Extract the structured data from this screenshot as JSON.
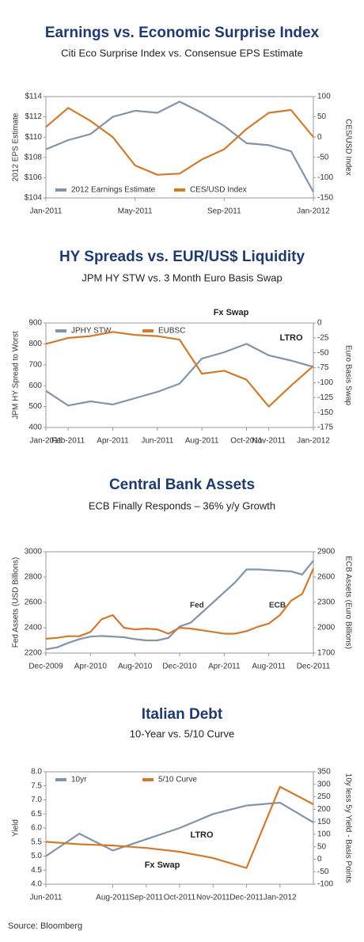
{
  "chart_data": [
    {
      "type": "line",
      "title": "Earnings vs. Economic Surprise Index",
      "subtitle": "Citi Eco Surprise Index vs. Consensue EPS Estimate",
      "x": [
        "2011-01",
        "2011-02",
        "2011-03",
        "2011-04",
        "2011-05",
        "2011-06",
        "2011-07",
        "2011-08",
        "2011-09",
        "2011-10",
        "2011-11",
        "2011-12",
        "2012-01"
      ],
      "xlim": [
        "2011-01",
        "2012-01"
      ],
      "xticks": [
        {
          "value": "2011-01",
          "label": "Jan-2011"
        },
        {
          "value": "2011-05",
          "label": "May-2011"
        },
        {
          "value": "2011-09",
          "label": "Sep-2011"
        },
        {
          "value": "2012-01",
          "label": "Jan-2012"
        }
      ],
      "y_label": "2012 EPS Estimate",
      "y2_label": "CES/USD Index",
      "ylim": [
        104,
        114
      ],
      "yticks": [
        {
          "value": 104,
          "label": "$104"
        },
        {
          "value": 106,
          "label": "$106"
        },
        {
          "value": 108,
          "label": "$108"
        },
        {
          "value": 110,
          "label": "$110"
        },
        {
          "value": 112,
          "label": "$112"
        },
        {
          "value": 114,
          "label": "$114"
        }
      ],
      "y2lim": [
        -150,
        100
      ],
      "y2ticks": [
        -150,
        -100,
        -50,
        0,
        50,
        100
      ],
      "legend": "lower left",
      "series": [
        {
          "name": "2012 Earnings Estimate",
          "color": "#8393a8",
          "values": [
            108.8,
            109.7,
            110.3,
            112.0,
            112.6,
            112.4,
            113.5,
            112.4,
            111.1,
            109.4,
            109.2,
            108.6,
            104.6
          ]
        },
        {
          "name": "CES/USD Index",
          "color": "#d07a2e",
          "axis": "y2",
          "values": [
            25,
            72,
            40,
            0,
            -70,
            -93,
            -90,
            -55,
            -30,
            20,
            60,
            67,
            0
          ]
        }
      ]
    },
    {
      "type": "line",
      "title": "HY Spreads vs. EUR/US$ Liquidity",
      "subtitle": "JPM HY STW vs. 3 Month Euro Basis Swap",
      "x": [
        "2011-01",
        "2011-02",
        "2011-03",
        "2011-04",
        "2011-05",
        "2011-06",
        "2011-07",
        "2011-08",
        "2011-09",
        "2011-10",
        "2011-11",
        "2011-12",
        "2012-01"
      ],
      "xlim": [
        "2011-01",
        "2012-01"
      ],
      "xticks": [
        {
          "value": "2011-01",
          "label": "Jan-2011"
        },
        {
          "value": "2011-02",
          "label": "Feb-2011"
        },
        {
          "value": "2011-04",
          "label": "Apr-2011"
        },
        {
          "value": "2011-06",
          "label": "Jun-2011"
        },
        {
          "value": "2011-08",
          "label": "Aug-2011"
        },
        {
          "value": "2011-10",
          "label": "Oct-2011"
        },
        {
          "value": "2011-11",
          "label": "Nov-2011"
        },
        {
          "value": "2012-01",
          "label": "Jan-2012"
        }
      ],
      "y_label": "JPM HY Spread to Worst",
      "y2_label": "Euro Basis Swap",
      "ylim": [
        400,
        900
      ],
      "yticks": [
        400,
        500,
        600,
        700,
        800,
        900
      ],
      "y2lim": [
        -175,
        0
      ],
      "y2ticks": [
        -175,
        -150,
        -125,
        -100,
        -75,
        -50,
        -25,
        0
      ],
      "legend": "upper left",
      "annotations": [
        "Fx Swap",
        "LTRO"
      ],
      "series": [
        {
          "name": "JPHY STW",
          "color": "#8393a8",
          "values": [
            575,
            505,
            525,
            510,
            540,
            570,
            610,
            730,
            760,
            800,
            745,
            720,
            690
          ]
        },
        {
          "name": "EUBSC",
          "color": "#d07a2e",
          "axis": "y2",
          "values": [
            -35,
            -25,
            -22,
            -15,
            -20,
            -22,
            -28,
            -85,
            -80,
            -95,
            -140,
            -105,
            -72
          ]
        }
      ]
    },
    {
      "type": "line",
      "title": "Central Bank Assets",
      "subtitle": "ECB Finally Responds – 36% y/y Growth",
      "x": [
        "2009-12",
        "2010-01",
        "2010-02",
        "2010-03",
        "2010-04",
        "2010-05",
        "2010-06",
        "2010-07",
        "2010-08",
        "2010-09",
        "2010-10",
        "2010-11",
        "2010-12",
        "2011-01",
        "2011-02",
        "2011-03",
        "2011-04",
        "2011-05",
        "2011-06",
        "2011-07",
        "2011-08",
        "2011-09",
        "2011-10",
        "2011-11",
        "2011-12"
      ],
      "xlim": [
        "2009-12",
        "2011-12"
      ],
      "xticks": [
        {
          "value": "2009-12",
          "label": "Dec-2009"
        },
        {
          "value": "2010-04",
          "label": "Apr-2010"
        },
        {
          "value": "2010-08",
          "label": "Aug-2010"
        },
        {
          "value": "2010-12",
          "label": "Dec-2010"
        },
        {
          "value": "2011-04",
          "label": "Apr-2011"
        },
        {
          "value": "2011-08",
          "label": "Aug-2011"
        },
        {
          "value": "2011-12",
          "label": "Dec-2011"
        }
      ],
      "y_label": "Fed Assets (USD Billions)",
      "y2_label": "ECB Assets (Euro Billions)",
      "ylim": [
        2200,
        3000
      ],
      "yticks": [
        2200,
        2400,
        2600,
        2800,
        3000
      ],
      "y2lim": [
        1700,
        2900
      ],
      "y2ticks": [
        1700,
        2000,
        2300,
        2600,
        2900
      ],
      "legend": "inline",
      "series": [
        {
          "name": "Fed",
          "color": "#8393a8",
          "values": [
            2230,
            2245,
            2280,
            2310,
            2330,
            2335,
            2330,
            2325,
            2310,
            2300,
            2300,
            2320,
            2410,
            2440,
            2520,
            2600,
            2680,
            2760,
            2860,
            2860,
            2855,
            2850,
            2845,
            2820,
            2930
          ]
        },
        {
          "name": "ECB",
          "color": "#d07a2e",
          "axis": "y2",
          "values": [
            1870,
            1880,
            1900,
            1900,
            1950,
            2100,
            2150,
            2000,
            1980,
            1990,
            1980,
            1930,
            2000,
            1990,
            1970,
            1950,
            1930,
            1930,
            1960,
            2010,
            2050,
            2150,
            2320,
            2400,
            2700
          ]
        }
      ]
    },
    {
      "type": "line",
      "title": "Italian Debt",
      "subtitle": "10-Year vs. 5/10 Curve",
      "x": [
        "2011-06",
        "2011-07",
        "2011-08",
        "2011-09",
        "2011-10",
        "2011-11",
        "2011-12",
        "2012-01",
        "2012-02"
      ],
      "xlim": [
        "2011-06",
        "2012-02"
      ],
      "xticks": [
        {
          "value": "2011-06",
          "label": "Jun-2011"
        },
        {
          "value": "2011-08",
          "label": "Aug-2011"
        },
        {
          "value": "2011-09",
          "label": "Sep-2011"
        },
        {
          "value": "2011-10",
          "label": "Oct-2011"
        },
        {
          "value": "2011-11",
          "label": "Nov-2011"
        },
        {
          "value": "2011-12",
          "label": "Dec-2011"
        },
        {
          "value": "2012-01",
          "label": "Jan-2012"
        }
      ],
      "y_label": "Yield",
      "y2_label": "10y less 5y Yield - Basis Points",
      "ylim": [
        4,
        8
      ],
      "yticks": [
        {
          "value": 4,
          "label": "4.0"
        },
        4.5,
        {
          "value": 5,
          "label": "5.0"
        },
        5.5,
        {
          "value": 6,
          "label": "6.0"
        },
        6.5,
        {
          "value": 7,
          "label": "7.0"
        },
        7.5,
        {
          "value": 8,
          "label": "8.0"
        }
      ],
      "y2lim": [
        -100,
        350
      ],
      "y2ticks": [
        -100,
        -50,
        0,
        50,
        100,
        150,
        200,
        250,
        300,
        350
      ],
      "legend": "upper left",
      "annotations": [
        "LTRO",
        "Fx Swap"
      ],
      "series": [
        {
          "name": "10yr",
          "color": "#8393a8",
          "values": [
            5.0,
            5.8,
            5.2,
            5.6,
            6.0,
            6.5,
            6.8,
            6.9,
            6.2
          ]
        },
        {
          "name": "5/10 Curve",
          "color": "#d07a2e",
          "axis": "y2",
          "values": [
            70,
            60,
            55,
            45,
            30,
            5,
            -35,
            290,
            220
          ]
        }
      ]
    }
  ],
  "source": "Source: Bloomberg"
}
